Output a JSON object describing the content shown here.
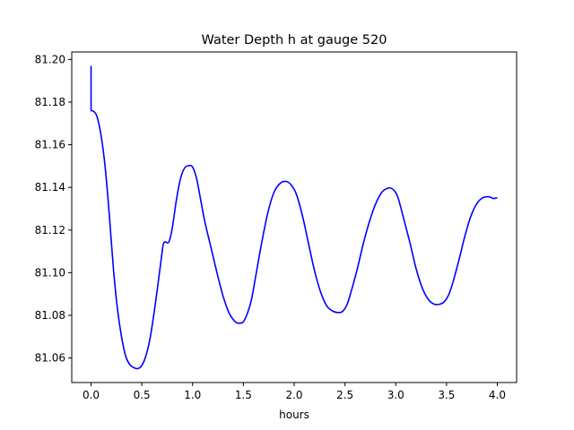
{
  "chart_data": {
    "type": "line",
    "title": "Water Depth h at gauge 520",
    "xlabel": "hours",
    "ylabel": "",
    "xlim": [
      -0.19,
      4.19
    ],
    "ylim": [
      81.0485,
      81.2035
    ],
    "xticks": [
      0.0,
      0.5,
      1.0,
      1.5,
      2.0,
      2.5,
      3.0,
      3.5,
      4.0
    ],
    "xtick_labels": [
      "0.0",
      "0.5",
      "1.0",
      "1.5",
      "2.0",
      "2.5",
      "3.0",
      "3.5",
      "4.0"
    ],
    "yticks": [
      81.06,
      81.08,
      81.1,
      81.12,
      81.14,
      81.16,
      81.18,
      81.2
    ],
    "ytick_labels": [
      "81.06",
      "81.08",
      "81.10",
      "81.12",
      "81.14",
      "81.16",
      "81.18",
      "81.20"
    ],
    "grid": false,
    "legend": "none",
    "series": [
      {
        "color": "#0000ff",
        "x": [
          0.0,
          0.0,
          0.0,
          0.03,
          0.06,
          0.1,
          0.14,
          0.18,
          0.22,
          0.26,
          0.3,
          0.34,
          0.38,
          0.42,
          0.46,
          0.5,
          0.54,
          0.58,
          0.62,
          0.66,
          0.69,
          0.71,
          0.73,
          0.75,
          0.77,
          0.8,
          0.84,
          0.88,
          0.92,
          0.96,
          1.0,
          1.04,
          1.08,
          1.12,
          1.18,
          1.24,
          1.3,
          1.36,
          1.42,
          1.46,
          1.5,
          1.54,
          1.58,
          1.62,
          1.68,
          1.74,
          1.8,
          1.86,
          1.92,
          1.97,
          2.02,
          2.08,
          2.14,
          2.2,
          2.26,
          2.32,
          2.38,
          2.44,
          2.48,
          2.52,
          2.56,
          2.62,
          2.68,
          2.74,
          2.8,
          2.86,
          2.92,
          2.97,
          3.02,
          3.08,
          3.14,
          3.2,
          3.26,
          3.32,
          3.38,
          3.44,
          3.48,
          3.52,
          3.56,
          3.62,
          3.68,
          3.74,
          3.8,
          3.86,
          3.92,
          3.96,
          4.0
        ],
        "y": [
          81.197,
          81.176,
          81.176,
          81.1755,
          81.173,
          81.164,
          81.149,
          81.127,
          81.102,
          81.083,
          81.07,
          81.061,
          81.057,
          81.0555,
          81.055,
          81.0565,
          81.061,
          81.069,
          81.081,
          81.095,
          81.106,
          81.113,
          81.1145,
          81.114,
          81.1148,
          81.121,
          81.134,
          81.144,
          81.149,
          81.1502,
          81.1495,
          81.144,
          81.134,
          81.124,
          81.112,
          81.1,
          81.089,
          81.081,
          81.077,
          81.0763,
          81.077,
          81.081,
          81.0875,
          81.098,
          81.114,
          81.128,
          81.1375,
          81.1418,
          81.1428,
          81.1412,
          81.137,
          81.127,
          81.114,
          81.101,
          81.091,
          81.0845,
          81.082,
          81.0813,
          81.082,
          81.085,
          81.091,
          81.1015,
          81.1135,
          81.1238,
          81.132,
          81.1375,
          81.1396,
          81.1392,
          81.1355,
          81.125,
          81.114,
          81.102,
          81.093,
          81.0875,
          81.0852,
          81.0853,
          81.0865,
          81.0895,
          81.095,
          81.1055,
          81.117,
          81.1265,
          81.1325,
          81.1352,
          81.1356,
          81.1348,
          81.1352
        ]
      }
    ]
  }
}
